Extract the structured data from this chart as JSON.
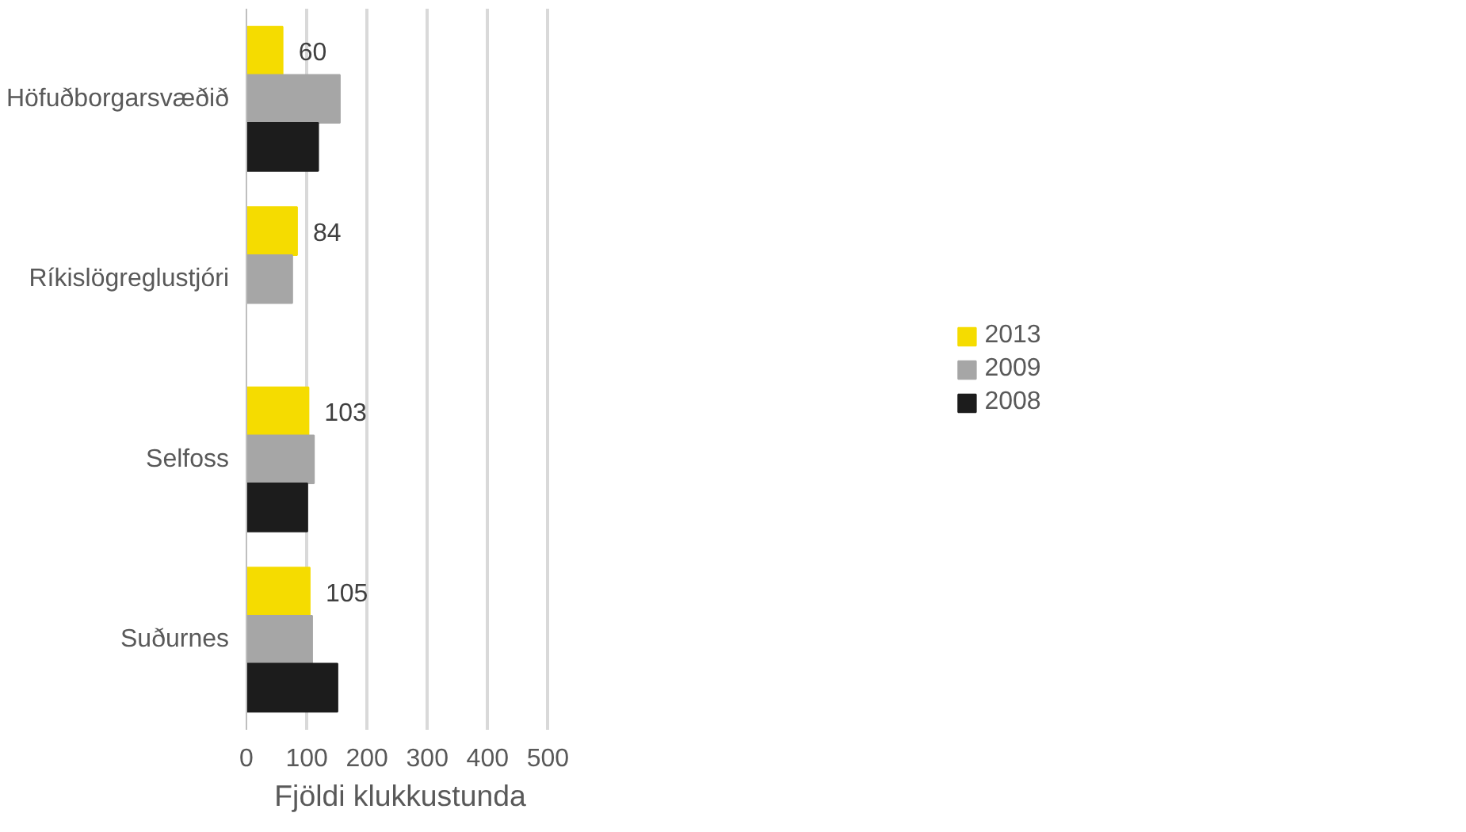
{
  "chart_data": {
    "type": "bar",
    "orientation": "horizontal",
    "xlabel": "Fjöldi klukkustunda",
    "categories": [
      "Höfuðborgarsvæðið",
      "Ríkislögreglustjóri",
      "Selfoss",
      "Suðurnes"
    ],
    "series": [
      {
        "name": "2013",
        "color": "#f5dc00",
        "values": [
          60,
          84,
          103,
          105
        ],
        "value_labels": [
          "60",
          "84",
          "103",
          "105"
        ]
      },
      {
        "name": "2009",
        "color": "#a6a6a6",
        "values": [
          155,
          76,
          112,
          109
        ]
      },
      {
        "name": "2008",
        "color": "#1c1c1c",
        "values": [
          119,
          null,
          101,
          151
        ]
      }
    ],
    "xlim": [
      0,
      500
    ],
    "xticks": [
      0,
      100,
      200,
      300,
      400,
      500
    ],
    "grid": "x",
    "legend": "right"
  }
}
